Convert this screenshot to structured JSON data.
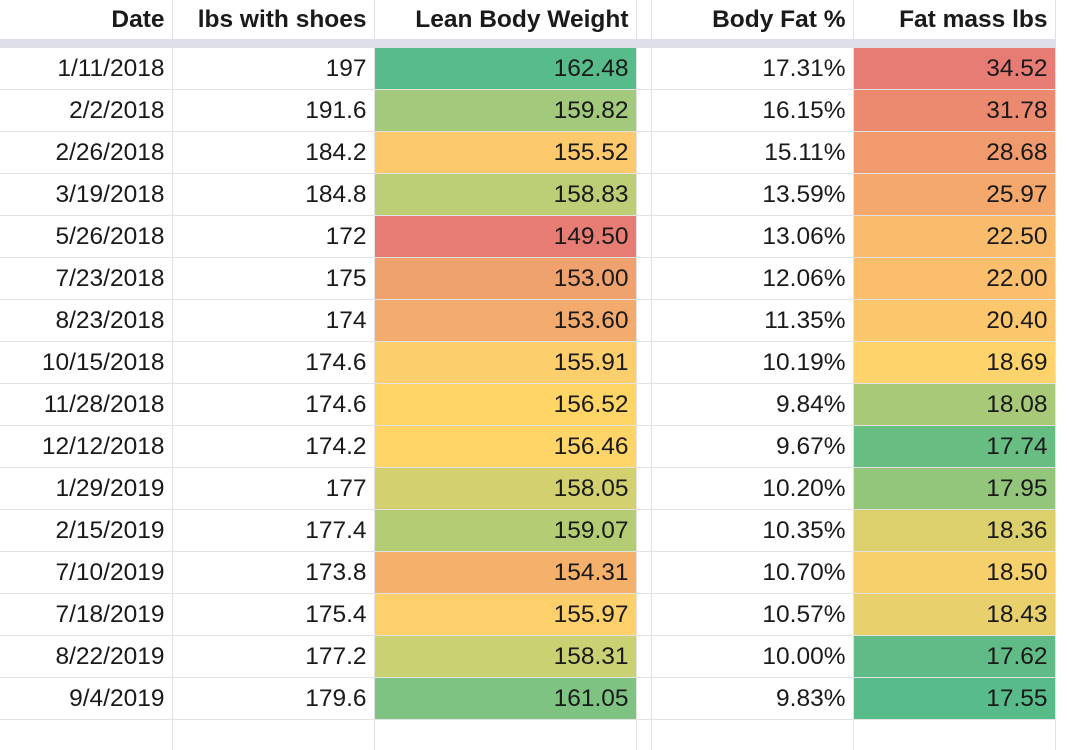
{
  "headers": {
    "date": "Date",
    "lbs": "lbs with shoes",
    "lean": "Lean Body Weight",
    "bf": "Body Fat %",
    "fat": "Fat mass lbs"
  },
  "rows": [
    {
      "date": "1/11/2018",
      "lbs": "197",
      "lean": "162.48",
      "bf": "17.31%",
      "fat": "34.52",
      "lean_color": "#57bb8a",
      "fat_color": "#e67c73"
    },
    {
      "date": "2/2/2018",
      "lbs": "191.6",
      "lean": "159.82",
      "bf": "16.15%",
      "fat": "31.78",
      "lean_color": "#a3c97c",
      "fat_color": "#eb8a6f"
    },
    {
      "date": "2/26/2018",
      "lbs": "184.2",
      "lean": "155.52",
      "bf": "15.11%",
      "fat": "28.68",
      "lean_color": "#fcc96d",
      "fat_color": "#f09a6d"
    },
    {
      "date": "3/19/2018",
      "lbs": "184.8",
      "lean": "158.83",
      "bf": "13.59%",
      "fat": "25.97",
      "lean_color": "#bcce76",
      "fat_color": "#f4a86c"
    },
    {
      "date": "5/26/2018",
      "lbs": "172",
      "lean": "149.50",
      "bf": "13.06%",
      "fat": "22.50",
      "lean_color": "#e67c73",
      "fat_color": "#f9bb6c"
    },
    {
      "date": "7/23/2018",
      "lbs": "175",
      "lean": "153.00",
      "bf": "12.06%",
      "fat": "22.00",
      "lean_color": "#f0a26e",
      "fat_color": "#fabe6c"
    },
    {
      "date": "8/23/2018",
      "lbs": "174",
      "lean": "153.60",
      "bf": "11.35%",
      "fat": "20.40",
      "lean_color": "#f3aa6d",
      "fat_color": "#fcc66c"
    },
    {
      "date": "10/15/2018",
      "lbs": "174.6",
      "lean": "155.91",
      "bf": "10.19%",
      "fat": "18.69",
      "lean_color": "#fdcf6c",
      "fat_color": "#fed36b"
    },
    {
      "date": "11/28/2018",
      "lbs": "174.6",
      "lean": "156.52",
      "bf": "9.84%",
      "fat": "18.08",
      "lean_color": "#ffd566",
      "fat_color": "#a8ca78"
    },
    {
      "date": "12/12/2018",
      "lbs": "174.2",
      "lean": "156.46",
      "bf": "9.67%",
      "fat": "17.74",
      "lean_color": "#ffd567",
      "fat_color": "#68bd83"
    },
    {
      "date": "1/29/2019",
      "lbs": "177",
      "lean": "158.05",
      "bf": "10.20%",
      "fat": "17.95",
      "lean_color": "#d3d16f",
      "fat_color": "#93c57b"
    },
    {
      "date": "2/15/2019",
      "lbs": "177.4",
      "lean": "159.07",
      "bf": "10.35%",
      "fat": "18.36",
      "lean_color": "#b4cd75",
      "fat_color": "#dcd06c"
    },
    {
      "date": "7/10/2019",
      "lbs": "173.8",
      "lean": "154.31",
      "bf": "10.70%",
      "fat": "18.50",
      "lean_color": "#f5b16c",
      "fat_color": "#f6d16b"
    },
    {
      "date": "7/18/2019",
      "lbs": "175.4",
      "lean": "155.97",
      "bf": "10.57%",
      "fat": "18.43",
      "lean_color": "#fdd06b",
      "fat_color": "#e8d16c"
    },
    {
      "date": "8/22/2019",
      "lbs": "177.2",
      "lean": "158.31",
      "bf": "10.00%",
      "fat": "17.62",
      "lean_color": "#cad173",
      "fat_color": "#60bb86"
    },
    {
      "date": "9/4/2019",
      "lbs": "179.6",
      "lean": "161.05",
      "bf": "9.83%",
      "fat": "17.55",
      "lean_color": "#7fc382",
      "fat_color": "#57bb8a"
    }
  ]
}
